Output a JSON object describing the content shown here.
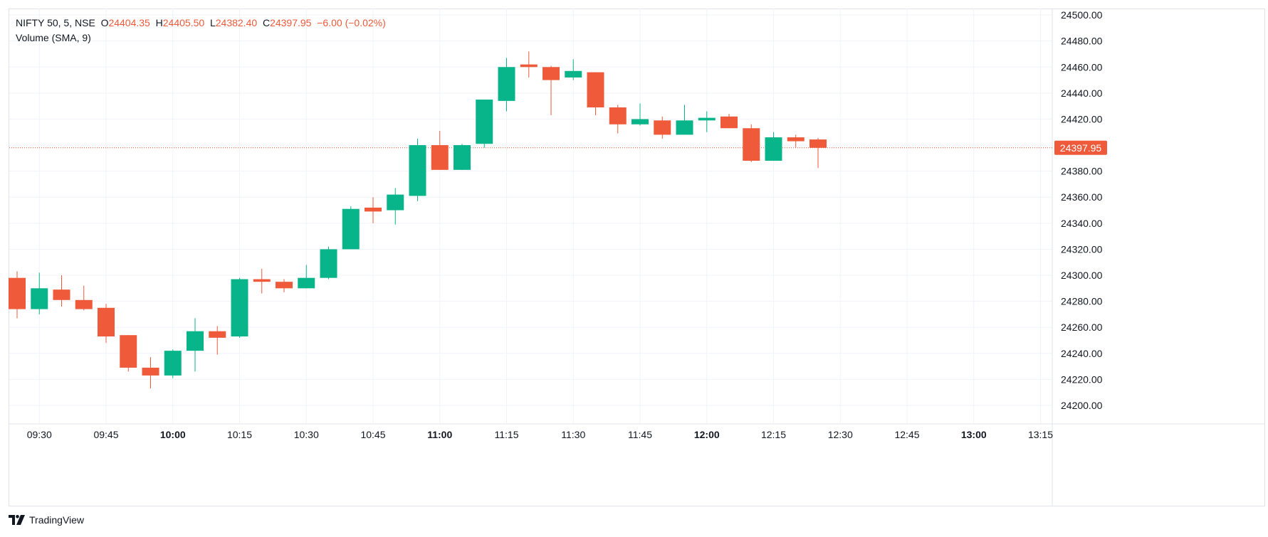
{
  "header": {
    "symbol": "NIFTY 50, 5, NSE",
    "o_label": "O",
    "o_value": "24404.35",
    "h_label": "H",
    "h_value": "24405.50",
    "l_label": "L",
    "l_value": "24382.40",
    "c_label": "C",
    "c_value": "24397.95",
    "change": "−6.00 (−0.02%)",
    "indicator": "Volume (SMA, 9)"
  },
  "branding": {
    "name": "TradingView",
    "icon": "tradingview-logo-icon"
  },
  "colors": {
    "up": "#089981",
    "down": "#f23645",
    "up_body": "#08b48a",
    "down_body": "#ee5a3a",
    "grid": "#f0f3fa",
    "price_tag": "#ee5a3a"
  },
  "chart_data": {
    "type": "candlestick",
    "interval_minutes": 5,
    "ylim": [
      24190,
      24505
    ],
    "y_ticks": [
      "24200.00",
      "24220.00",
      "24240.00",
      "24260.00",
      "24280.00",
      "24300.00",
      "24320.00",
      "24340.00",
      "24360.00",
      "24380.00",
      "24400.00",
      "24420.00",
      "24440.00",
      "24460.00",
      "24480.00",
      "24500.00"
    ],
    "x_ticks": [
      {
        "label": "09:30",
        "bold": false
      },
      {
        "label": "09:45",
        "bold": false
      },
      {
        "label": "10:00",
        "bold": true
      },
      {
        "label": "10:15",
        "bold": false
      },
      {
        "label": "10:30",
        "bold": false
      },
      {
        "label": "10:45",
        "bold": false
      },
      {
        "label": "11:00",
        "bold": true
      },
      {
        "label": "11:15",
        "bold": false
      },
      {
        "label": "11:30",
        "bold": false
      },
      {
        "label": "11:45",
        "bold": false
      },
      {
        "label": "12:00",
        "bold": true
      },
      {
        "label": "12:15",
        "bold": false
      },
      {
        "label": "12:30",
        "bold": false
      },
      {
        "label": "12:45",
        "bold": false
      },
      {
        "label": "13:00",
        "bold": true
      },
      {
        "label": "13:15",
        "bold": false
      }
    ],
    "last_price": 24397.95,
    "last_price_label": "24397.95",
    "candles": [
      {
        "time": "09:25",
        "o": 24298,
        "h": 24303,
        "l": 24267,
        "c": 24274
      },
      {
        "time": "09:30",
        "o": 24274,
        "h": 24302,
        "l": 24270,
        "c": 24290
      },
      {
        "time": "09:35",
        "o": 24289,
        "h": 24300,
        "l": 24276,
        "c": 24281
      },
      {
        "time": "09:40",
        "o": 24281,
        "h": 24292,
        "l": 24273,
        "c": 24274
      },
      {
        "time": "09:45",
        "o": 24275,
        "h": 24278,
        "l": 24248,
        "c": 24253
      },
      {
        "time": "09:50",
        "o": 24254,
        "h": 24254,
        "l": 24226,
        "c": 24229
      },
      {
        "time": "09:55",
        "o": 24229,
        "h": 24237,
        "l": 24213,
        "c": 24223
      },
      {
        "time": "10:00",
        "o": 24223,
        "h": 24243,
        "l": 24221,
        "c": 24242
      },
      {
        "time": "10:05",
        "o": 24242,
        "h": 24267,
        "l": 24226,
        "c": 24257
      },
      {
        "time": "10:10",
        "o": 24257,
        "h": 24261,
        "l": 24239,
        "c": 24252
      },
      {
        "time": "10:15",
        "o": 24253,
        "h": 24298,
        "l": 24252,
        "c": 24297
      },
      {
        "time": "10:20",
        "o": 24297,
        "h": 24305,
        "l": 24286,
        "c": 24295
      },
      {
        "time": "10:25",
        "o": 24295,
        "h": 24297,
        "l": 24287,
        "c": 24290
      },
      {
        "time": "10:30",
        "o": 24290,
        "h": 24308,
        "l": 24290,
        "c": 24298
      },
      {
        "time": "10:35",
        "o": 24298,
        "h": 24322,
        "l": 24297,
        "c": 24320
      },
      {
        "time": "10:40",
        "o": 24320,
        "h": 24353,
        "l": 24320,
        "c": 24351
      },
      {
        "time": "10:45",
        "o": 24352,
        "h": 24360,
        "l": 24340,
        "c": 24349
      },
      {
        "time": "10:50",
        "o": 24350,
        "h": 24367,
        "l": 24339,
        "c": 24362
      },
      {
        "time": "10:55",
        "o": 24361,
        "h": 24405,
        "l": 24357,
        "c": 24400
      },
      {
        "time": "11:00",
        "o": 24400,
        "h": 24411,
        "l": 24381,
        "c": 24381
      },
      {
        "time": "11:05",
        "o": 24381,
        "h": 24401,
        "l": 24381,
        "c": 24400
      },
      {
        "time": "11:10",
        "o": 24401,
        "h": 24435,
        "l": 24398,
        "c": 24435
      },
      {
        "time": "11:15",
        "o": 24434,
        "h": 24467,
        "l": 24426,
        "c": 24460
      },
      {
        "time": "11:20",
        "o": 24462,
        "h": 24472,
        "l": 24452,
        "c": 24460
      },
      {
        "time": "11:25",
        "o": 24460,
        "h": 24461,
        "l": 24423,
        "c": 24450
      },
      {
        "time": "11:30",
        "o": 24452,
        "h": 24466,
        "l": 24450,
        "c": 24457
      },
      {
        "time": "11:35",
        "o": 24456,
        "h": 24456,
        "l": 24423,
        "c": 24429
      },
      {
        "time": "11:40",
        "o": 24429,
        "h": 24431,
        "l": 24409,
        "c": 24416
      },
      {
        "time": "11:45",
        "o": 24416,
        "h": 24432,
        "l": 24415,
        "c": 24420
      },
      {
        "time": "11:50",
        "o": 24419,
        "h": 24422,
        "l": 24405,
        "c": 24408
      },
      {
        "time": "11:55",
        "o": 24408,
        "h": 24431,
        "l": 24408,
        "c": 24419
      },
      {
        "time": "12:00",
        "o": 24419,
        "h": 24426,
        "l": 24410,
        "c": 24421
      },
      {
        "time": "12:05",
        "o": 24422,
        "h": 24424,
        "l": 24413,
        "c": 24413
      },
      {
        "time": "12:10",
        "o": 24413,
        "h": 24416,
        "l": 24387,
        "c": 24388
      },
      {
        "time": "12:15",
        "o": 24388,
        "h": 24410,
        "l": 24388,
        "c": 24406
      },
      {
        "time": "12:20",
        "o": 24406,
        "h": 24408,
        "l": 24398,
        "c": 24403
      },
      {
        "time": "12:25",
        "o": 24404.35,
        "h": 24405.5,
        "l": 24382.4,
        "c": 24397.95
      }
    ]
  }
}
